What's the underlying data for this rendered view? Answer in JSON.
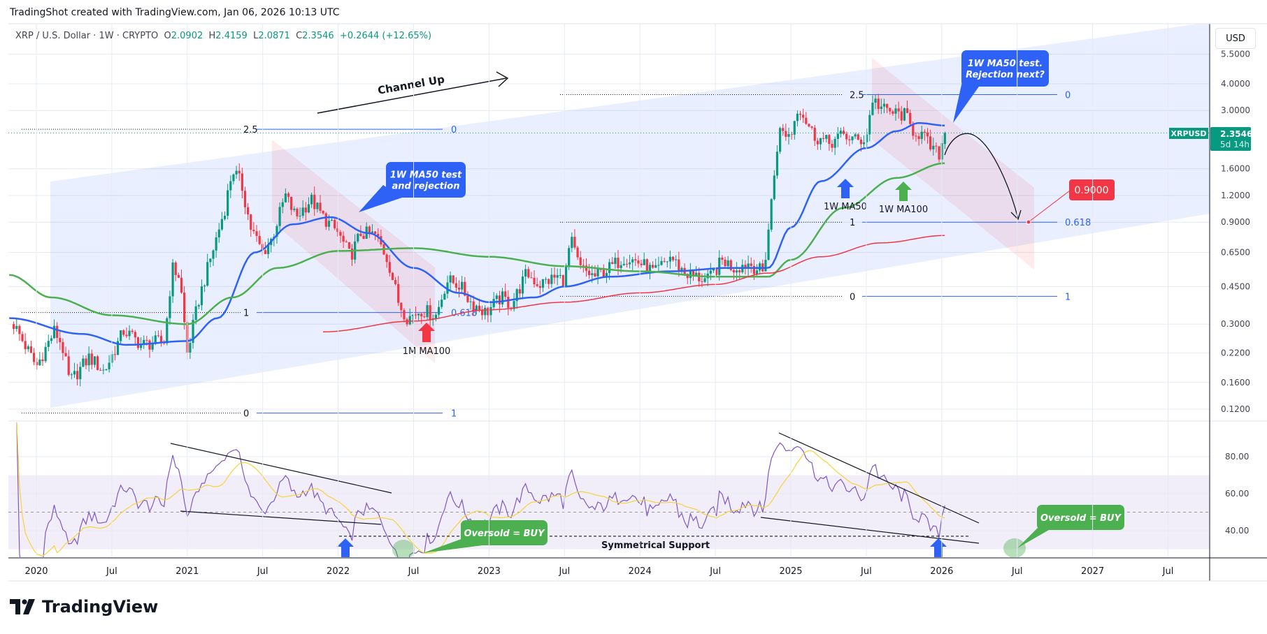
{
  "header": {
    "caption": "TradingShot created with TradingView.com, Jan 06, 2026 10:13 UTC"
  },
  "legend": {
    "symbol": "XRP / U.S. Dollar · 1W · CRYPTO",
    "o_label": "O",
    "o": "2.0902",
    "h_label": "H",
    "h": "2.4159",
    "l_label": "L",
    "l": "2.0871",
    "c_label": "C",
    "c": "2.3546",
    "change": "+0.2644 (+12.65%)"
  },
  "currency_button": "USD",
  "price_tag": {
    "symbol": "XRPUSD",
    "price": "2.3546",
    "countdown": "5d 14h"
  },
  "logo": {
    "text": "TradingView"
  },
  "colors": {
    "up": "#089981",
    "down": "#f23645",
    "ma50": "#2e62f7",
    "ma100": "#4caf50",
    "mma100": "#f23645",
    "rsi": "#7e57c2",
    "rsi_ma": "#f7d23a"
  },
  "chart_data": [
    {
      "type": "candlestick",
      "title": "XRP / U.S. Dollar · 1W",
      "scale": "log",
      "ylim": [
        0.105,
        6.0
      ],
      "xlim": [
        2019.82,
        2027.75
      ],
      "y_ticks": [
        "5.5000",
        "4.0000",
        "3.0000",
        "1.6000",
        "1.2000",
        "0.9000",
        "0.6500",
        "0.4500",
        "0.3000",
        "0.2200",
        "0.1600",
        "0.1200"
      ],
      "x_ticks": [
        {
          "t": 2020.0,
          "label": "2020"
        },
        {
          "t": 2020.5,
          "label": "Jul"
        },
        {
          "t": 2021.0,
          "label": "2021"
        },
        {
          "t": 2021.5,
          "label": "Jul"
        },
        {
          "t": 2022.0,
          "label": "2022"
        },
        {
          "t": 2022.5,
          "label": "Jul"
        },
        {
          "t": 2023.0,
          "label": "2023"
        },
        {
          "t": 2023.5,
          "label": "Jul"
        },
        {
          "t": 2024.0,
          "label": "2024"
        },
        {
          "t": 2024.5,
          "label": "Jul"
        },
        {
          "t": 2025.0,
          "label": "2025"
        },
        {
          "t": 2025.5,
          "label": "Jul"
        },
        {
          "t": 2026.0,
          "label": "2026"
        },
        {
          "t": 2026.5,
          "label": "Jul"
        },
        {
          "t": 2027.0,
          "label": "2027"
        },
        {
          "t": 2027.5,
          "label": "Jul"
        }
      ],
      "close_anchors": [
        [
          2019.85,
          0.3
        ],
        [
          2020.0,
          0.19
        ],
        [
          2020.12,
          0.28
        ],
        [
          2020.17,
          0.24
        ],
        [
          2020.22,
          0.16
        ],
        [
          2020.35,
          0.21
        ],
        [
          2020.45,
          0.18
        ],
        [
          2020.58,
          0.28
        ],
        [
          2020.7,
          0.24
        ],
        [
          2020.85,
          0.25
        ],
        [
          2020.9,
          0.55
        ],
        [
          2020.95,
          0.5
        ],
        [
          2021.0,
          0.22
        ],
        [
          2021.08,
          0.4
        ],
        [
          2021.12,
          0.5
        ],
        [
          2021.25,
          1.05
        ],
        [
          2021.3,
          1.6
        ],
        [
          2021.36,
          1.35
        ],
        [
          2021.42,
          0.85
        ],
        [
          2021.5,
          0.65
        ],
        [
          2021.56,
          0.75
        ],
        [
          2021.65,
          1.2
        ],
        [
          2021.72,
          0.95
        ],
        [
          2021.82,
          1.15
        ],
        [
          2021.9,
          0.95
        ],
        [
          2022.0,
          0.8
        ],
        [
          2022.08,
          0.62
        ],
        [
          2022.15,
          0.8
        ],
        [
          2022.25,
          0.78
        ],
        [
          2022.33,
          0.6
        ],
        [
          2022.4,
          0.38
        ],
        [
          2022.46,
          0.32
        ],
        [
          2022.55,
          0.35
        ],
        [
          2022.65,
          0.33
        ],
        [
          2022.72,
          0.48
        ],
        [
          2022.8,
          0.46
        ],
        [
          2022.88,
          0.38
        ],
        [
          2022.98,
          0.34
        ],
        [
          2023.08,
          0.4
        ],
        [
          2023.15,
          0.37
        ],
        [
          2023.25,
          0.52
        ],
        [
          2023.33,
          0.46
        ],
        [
          2023.45,
          0.5
        ],
        [
          2023.5,
          0.48
        ],
        [
          2023.54,
          0.75
        ],
        [
          2023.6,
          0.55
        ],
        [
          2023.7,
          0.5
        ],
        [
          2023.8,
          0.55
        ],
        [
          2023.9,
          0.62
        ],
        [
          2024.0,
          0.58
        ],
        [
          2024.1,
          0.52
        ],
        [
          2024.2,
          0.62
        ],
        [
          2024.3,
          0.52
        ],
        [
          2024.45,
          0.48
        ],
        [
          2024.55,
          0.6
        ],
        [
          2024.62,
          0.55
        ],
        [
          2024.72,
          0.58
        ],
        [
          2024.82,
          0.52
        ],
        [
          2024.87,
          1.1
        ],
        [
          2024.92,
          2.4
        ],
        [
          2025.0,
          2.3
        ],
        [
          2025.05,
          3.2
        ],
        [
          2025.1,
          2.7
        ],
        [
          2025.15,
          2.3
        ],
        [
          2025.25,
          2.1
        ],
        [
          2025.35,
          2.3
        ],
        [
          2025.45,
          2.15
        ],
        [
          2025.5,
          2.25
        ],
        [
          2025.54,
          3.4
        ],
        [
          2025.62,
          3.0
        ],
        [
          2025.7,
          2.9
        ],
        [
          2025.76,
          2.85
        ],
        [
          2025.8,
          2.45
        ],
        [
          2025.87,
          2.3
        ],
        [
          2025.93,
          2.0
        ],
        [
          2025.98,
          1.85
        ],
        [
          2026.02,
          2.35
        ]
      ],
      "series": [
        {
          "name": "1W MA50",
          "points": [
            [
              2019.82,
              0.32
            ],
            [
              2020.3,
              0.27
            ],
            [
              2020.6,
              0.24
            ],
            [
              2021.0,
              0.25
            ],
            [
              2021.2,
              0.32
            ],
            [
              2021.45,
              0.65
            ],
            [
              2021.7,
              0.88
            ],
            [
              2021.95,
              0.95
            ],
            [
              2022.2,
              0.8
            ],
            [
              2022.5,
              0.55
            ],
            [
              2022.8,
              0.42
            ],
            [
              2023.0,
              0.38
            ],
            [
              2023.3,
              0.4
            ],
            [
              2023.5,
              0.45
            ],
            [
              2023.8,
              0.5
            ],
            [
              2024.2,
              0.53
            ],
            [
              2024.6,
              0.55
            ],
            [
              2024.85,
              0.55
            ],
            [
              2025.0,
              0.85
            ],
            [
              2025.2,
              1.4
            ],
            [
              2025.5,
              2.0
            ],
            [
              2025.7,
              2.4
            ],
            [
              2025.85,
              2.62
            ],
            [
              2026.02,
              2.55
            ]
          ]
        },
        {
          "name": "1W MA100",
          "points": [
            [
              2019.82,
              0.51
            ],
            [
              2020.1,
              0.4
            ],
            [
              2020.5,
              0.33
            ],
            [
              2021.0,
              0.3
            ],
            [
              2021.3,
              0.4
            ],
            [
              2021.6,
              0.55
            ],
            [
              2022.0,
              0.66
            ],
            [
              2022.5,
              0.68
            ],
            [
              2023.0,
              0.62
            ],
            [
              2023.5,
              0.56
            ],
            [
              2024.0,
              0.53
            ],
            [
              2024.5,
              0.5
            ],
            [
              2024.85,
              0.5
            ],
            [
              2025.0,
              0.6
            ],
            [
              2025.35,
              1.05
            ],
            [
              2025.7,
              1.45
            ],
            [
              2026.02,
              1.7
            ]
          ]
        },
        {
          "name": "1M MA100",
          "points": [
            [
              2021.9,
              0.276
            ],
            [
              2022.5,
              0.31
            ],
            [
              2023.0,
              0.35
            ],
            [
              2023.5,
              0.38
            ],
            [
              2024.0,
              0.42
            ],
            [
              2024.5,
              0.46
            ],
            [
              2024.85,
              0.52
            ],
            [
              2025.2,
              0.62
            ],
            [
              2025.6,
              0.72
            ],
            [
              2026.02,
              0.78
            ]
          ]
        }
      ],
      "annotations": {
        "channel_label": "Channel Up",
        "fib_left": {
          "levels": [
            {
              "price": 2.45,
              "left": "2.5",
              "right": "0"
            },
            {
              "price": 0.34,
              "left": "1",
              "right": "0.618"
            },
            {
              "price": 0.115,
              "left": "0",
              "right": "1"
            }
          ]
        },
        "fib_right": {
          "levels": [
            {
              "price": 3.56,
              "left": "2.5",
              "right": "0"
            },
            {
              "price": 0.9,
              "left": "1",
              "right": "0.618"
            },
            {
              "price": 0.405,
              "left": "0",
              "right": "1"
            }
          ]
        },
        "callout_left": [
          "1W MA50 test",
          "and rejection"
        ],
        "callout_right": [
          "1W MA50 test.",
          "Rejection next?"
        ],
        "target_label": "0.9000",
        "arrow_ma50": "1W MA50",
        "arrow_ma100": "1W MA100",
        "arrow_mma100": "1M MA100"
      }
    },
    {
      "type": "line",
      "title": "RSI",
      "ylim": [
        25,
        95
      ],
      "y_ticks": [
        "80.00",
        "60.00",
        "40.00"
      ],
      "bands": {
        "upper": 70,
        "middle": 50,
        "lower": 30
      },
      "annotations": {
        "support_label": "Symmetrical Support",
        "support_level": 37,
        "oversold_label": "Oversold = BUY"
      }
    }
  ]
}
